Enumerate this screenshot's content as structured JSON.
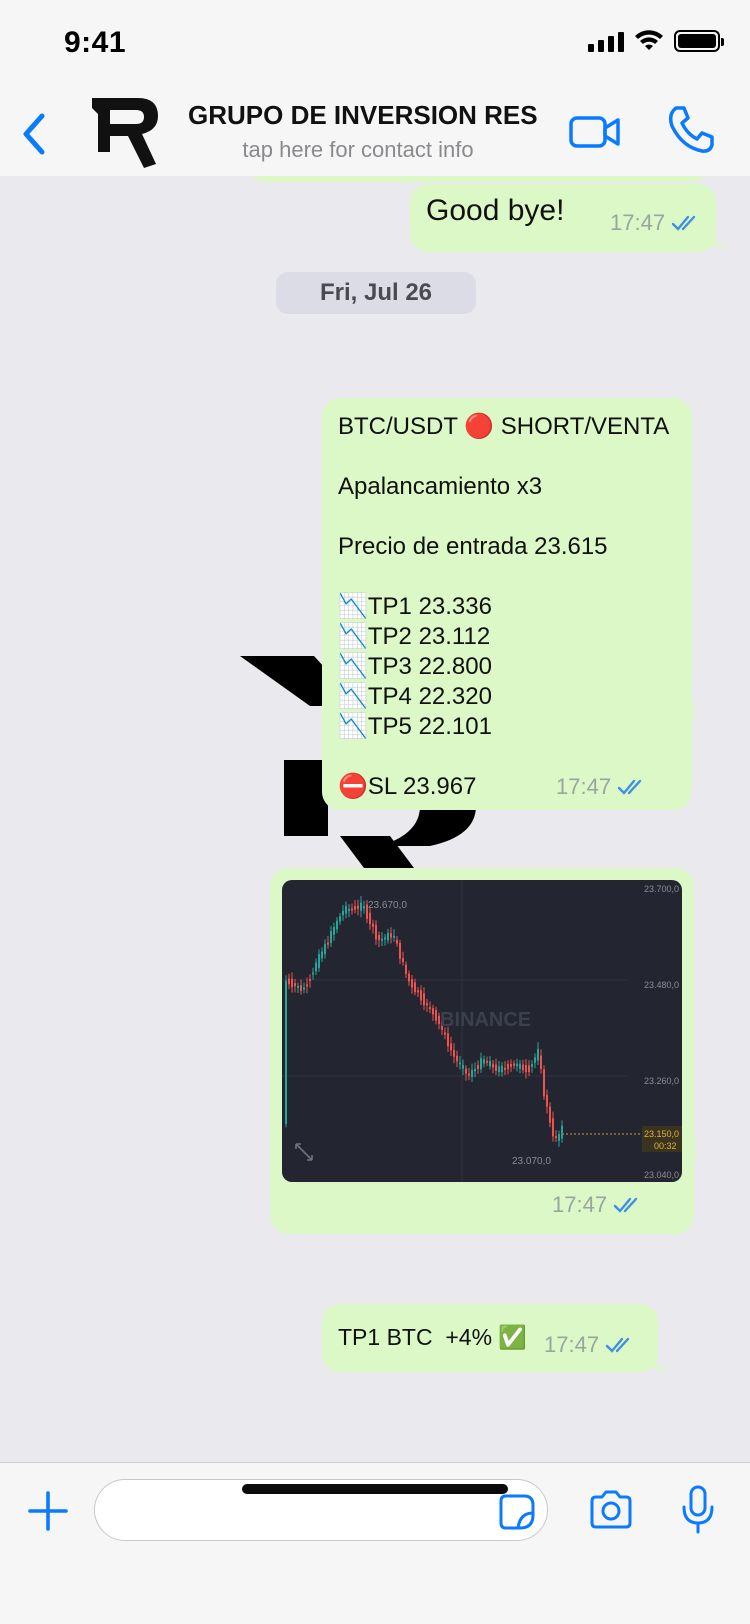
{
  "status_bar": {
    "time": "9:41"
  },
  "header": {
    "group_name": "GRUPO DE INVERSION RES",
    "subtitle": "tap here for contact info"
  },
  "messages": {
    "goodbye": {
      "text": "Good bye!",
      "time": "17:47"
    },
    "date_separator": "Fri, Jul 26",
    "signal": {
      "lines": [
        "BTC/USDT 🔴 SHORT/VENTA",
        "",
        "Apalancamiento x3",
        "",
        "Precio de entrada 23.615",
        "",
        "📉TP1 23.336",
        "📉TP2 23.112",
        "📉TP3 22.800",
        "📉TP4 22.320",
        "📉TP5 22.101",
        "",
        "⛔SL 23.967"
      ],
      "time": "17:47"
    },
    "chart_image": {
      "time": "17:47",
      "watermark": "BINANCE",
      "price_labels": [
        "23.700,0",
        "23.480,0",
        "23.260,0",
        "23.040,0"
      ],
      "high_label": "23.670,0",
      "low_label": "23.070,0",
      "current_price": "23.150,0",
      "countdown": "00:32"
    },
    "tp1": {
      "text": "TP1 BTC  +4% ✅",
      "time": "17:47"
    }
  },
  "input": {
    "placeholder": ""
  },
  "colors": {
    "bubble": "#dcf8c6",
    "accent": "#0a7aff",
    "background": "#e9e9ee",
    "chart_bg": "#232530",
    "candle_up": "#26a69a",
    "candle_down": "#ef5350"
  },
  "icons": [
    "back-chevron-icon",
    "video-call-icon",
    "phone-icon",
    "plus-icon",
    "sticker-icon",
    "camera-icon",
    "microphone-icon",
    "read-receipt-icon",
    "expand-icon"
  ]
}
